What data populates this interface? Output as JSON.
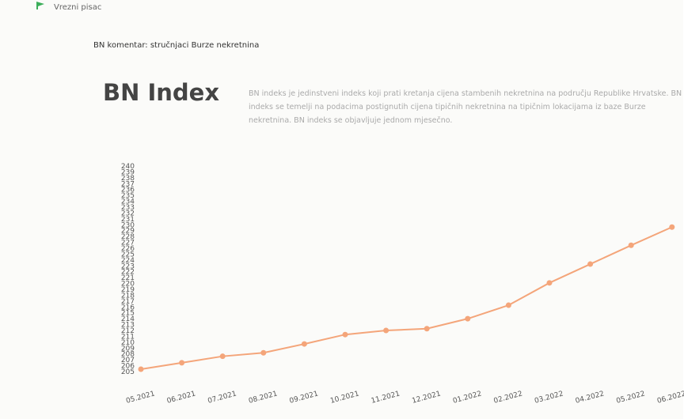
{
  "header": {
    "site": "Vrezni pisac",
    "breadcrumb": "BN komentar: stručnjaci Burze nekretnina"
  },
  "title": "BN Index",
  "description": "BN indeks je jedinstveni indeks koji prati kretanja cijena stambenih nekretnina na području Republike Hrvatske. BN indeks se temelji na podacima postignutih cijena tipičnih nekretnina na tipičnim lokacijama iz baze Burze nekretnina. BN indeks se objavljuje jednom mjesečno.",
  "chart_data": {
    "type": "line",
    "categories": [
      "05.2021",
      "06.2021",
      "07.2021",
      "08.2021",
      "09.2021",
      "10.2021",
      "11.2021",
      "12.2021",
      "01.2022",
      "02.2022",
      "03.2022",
      "04.2022",
      "05.2022",
      "06.2022"
    ],
    "values": [
      205.4,
      206.5,
      207.6,
      208.2,
      209.7,
      211.3,
      212.0,
      212.3,
      214.0,
      216.3,
      220.1,
      223.3,
      226.5,
      229.6
    ],
    "color": "#f4a57a",
    "ylim": [
      205,
      240
    ],
    "yticks": [
      205,
      206,
      207,
      208,
      209,
      210,
      211,
      212,
      213,
      214,
      215,
      216,
      217,
      218,
      219,
      220,
      221,
      222,
      223,
      224,
      225,
      226,
      227,
      228,
      229,
      230,
      231,
      232,
      233,
      234,
      235,
      236,
      237,
      238,
      239,
      240
    ]
  }
}
